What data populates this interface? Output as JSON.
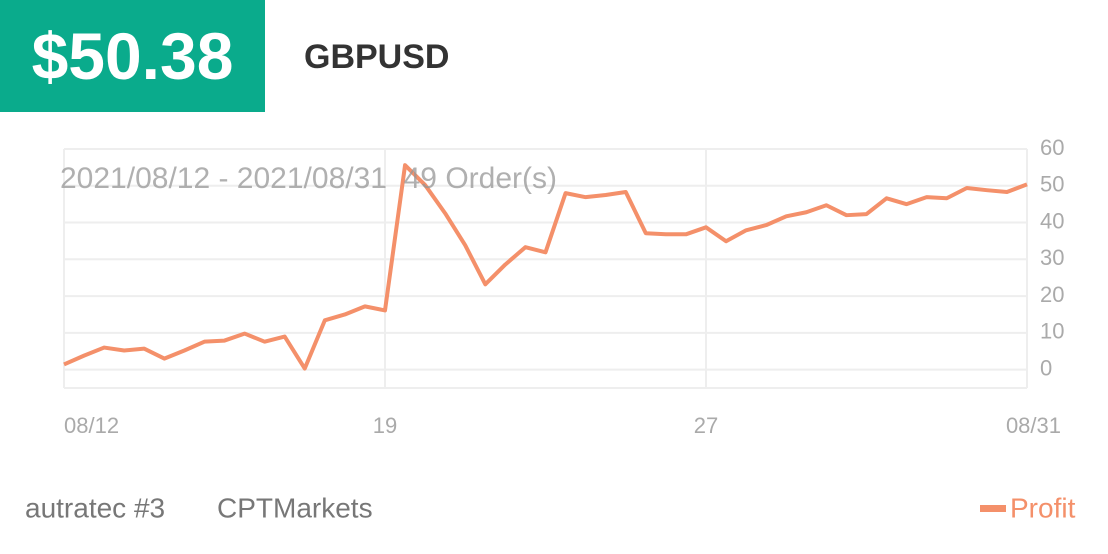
{
  "header": {
    "amount": "$50.38",
    "symbol": "GBPUSD"
  },
  "footer": {
    "account": "autratec #3",
    "broker": "CPTMarkets"
  },
  "chart_data": {
    "type": "line",
    "subtitle": "2021/08/12 - 2021/08/31  49 Order(s)",
    "categories": [
      "08/12",
      null,
      null,
      null,
      null,
      null,
      null,
      null,
      null,
      null,
      null,
      null,
      null,
      null,
      null,
      null,
      "19",
      null,
      null,
      null,
      null,
      null,
      null,
      null,
      null,
      null,
      null,
      null,
      null,
      null,
      null,
      null,
      "27",
      null,
      null,
      null,
      null,
      null,
      null,
      null,
      null,
      null,
      null,
      null,
      null,
      null,
      null,
      null,
      "08/31"
    ],
    "series": [
      {
        "name": "Profit",
        "color": "#f4906a",
        "values": [
          1.4,
          3.8,
          6.0,
          5.2,
          5.7,
          3.0,
          5.2,
          7.6,
          7.9,
          9.8,
          7.6,
          9.0,
          0.3,
          13.4,
          15.0,
          17.2,
          16.1,
          55.6,
          50.2,
          42.5,
          33.8,
          23.2,
          28.6,
          33.3,
          31.9,
          48.0,
          46.9,
          47.5,
          48.3,
          37.1,
          36.8,
          36.8,
          38.7,
          34.9,
          37.9,
          39.3,
          41.7,
          42.8,
          44.7,
          42.0,
          42.3,
          46.6,
          45.0,
          46.9,
          46.6,
          49.4,
          48.8,
          48.3,
          50.38
        ]
      }
    ],
    "ylim": [
      -5,
      60
    ],
    "yticks": [
      0,
      10,
      20,
      30,
      40,
      50,
      60
    ],
    "grid": true,
    "legend": "bottom-right"
  }
}
